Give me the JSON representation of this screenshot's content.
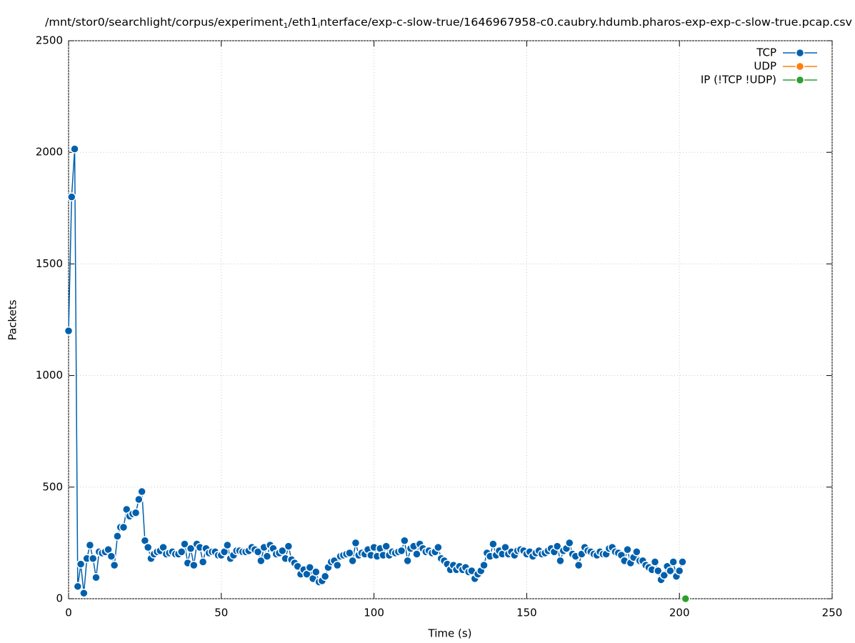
{
  "chart_data": {
    "type": "line",
    "title": [
      "/mnt/stor0/searchlight/corpus/experiment",
      "1",
      "/eth1",
      "i",
      "nterface/exp-c-slow-true/1646967958-c0.caubry.hdumb.pharos-exp-exp-c-slow-true.pcap.csv"
    ],
    "xlabel": "Time (s)",
    "ylabel": "Packets",
    "xlim": [
      0,
      250
    ],
    "xticks": [
      0,
      50,
      100,
      150,
      200,
      250
    ],
    "ylim": [
      0,
      2500
    ],
    "yticks": [
      0,
      500,
      1000,
      1500,
      2000,
      2500
    ],
    "grid": true,
    "legend": "top-right",
    "series": [
      {
        "name": "TCP",
        "color": "#0060ad",
        "x": [
          0,
          1,
          2,
          3,
          4,
          5,
          6,
          7,
          8,
          9,
          10,
          11,
          12,
          13,
          14,
          15,
          16,
          17,
          18,
          19,
          20,
          21,
          22,
          23,
          24,
          25,
          26,
          27,
          28,
          29,
          30,
          31,
          32,
          33,
          34,
          35,
          36,
          37,
          38,
          39,
          40,
          41,
          42,
          43,
          44,
          45,
          46,
          47,
          48,
          49,
          50,
          51,
          52,
          53,
          54,
          55,
          56,
          57,
          58,
          59,
          60,
          61,
          62,
          63,
          64,
          65,
          66,
          67,
          68,
          69,
          70,
          71,
          72,
          73,
          74,
          75,
          76,
          77,
          78,
          79,
          80,
          81,
          82,
          83,
          84,
          85,
          86,
          87,
          88,
          89,
          90,
          91,
          92,
          93,
          94,
          95,
          96,
          97,
          98,
          99,
          100,
          101,
          102,
          103,
          104,
          105,
          106,
          107,
          108,
          109,
          110,
          111,
          112,
          113,
          114,
          115,
          116,
          117,
          118,
          119,
          120,
          121,
          122,
          123,
          124,
          125,
          126,
          127,
          128,
          129,
          130,
          131,
          132,
          133,
          134,
          135,
          136,
          137,
          138,
          139,
          140,
          141,
          142,
          143,
          144,
          145,
          146,
          147,
          148,
          149,
          150,
          151,
          152,
          153,
          154,
          155,
          156,
          157,
          158,
          159,
          160,
          161,
          162,
          163,
          164,
          165,
          166,
          167,
          168,
          169,
          170,
          171,
          172,
          173,
          174,
          175,
          176,
          177,
          178,
          179,
          180,
          181,
          182,
          183,
          184,
          185,
          186,
          187,
          188,
          189,
          190,
          191,
          192,
          193,
          194,
          195,
          196,
          197,
          198,
          199,
          200,
          201
        ],
        "values": [
          1200,
          1800,
          2015,
          55,
          155,
          25,
          180,
          240,
          180,
          95,
          210,
          205,
          210,
          220,
          190,
          150,
          280,
          320,
          320,
          400,
          370,
          380,
          385,
          445,
          480,
          260,
          230,
          180,
          200,
          210,
          215,
          230,
          200,
          205,
          210,
          200,
          200,
          210,
          245,
          160,
          225,
          150,
          245,
          230,
          165,
          225,
          205,
          210,
          210,
          195,
          195,
          210,
          240,
          180,
          195,
          215,
          215,
          210,
          210,
          215,
          230,
          220,
          210,
          170,
          230,
          190,
          240,
          225,
          200,
          205,
          215,
          180,
          235,
          175,
          160,
          145,
          110,
          130,
          110,
          140,
          90,
          120,
          75,
          80,
          100,
          140,
          165,
          170,
          150,
          190,
          195,
          200,
          205,
          170,
          250,
          195,
          205,
          200,
          220,
          195,
          230,
          190,
          225,
          195,
          235,
          195,
          210,
          205,
          210,
          215,
          260,
          170,
          225,
          235,
          200,
          245,
          225,
          210,
          215,
          205,
          210,
          230,
          180,
          170,
          155,
          130,
          150,
          130,
          145,
          130,
          140,
          120,
          125,
          90,
          110,
          125,
          150,
          205,
          190,
          245,
          195,
          215,
          200,
          230,
          200,
          210,
          195,
          215,
          220,
          215,
          200,
          210,
          190,
          205,
          215,
          200,
          205,
          215,
          225,
          210,
          235,
          170,
          215,
          225,
          250,
          200,
          190,
          150,
          200,
          230,
          215,
          210,
          200,
          195,
          210,
          200,
          200,
          225,
          230,
          210,
          205,
          195,
          170,
          220,
          160,
          185,
          210,
          170,
          170,
          150,
          140,
          130,
          165,
          125,
          85,
          105,
          145,
          125,
          165,
          100,
          125,
          165
        ]
      },
      {
        "name": "UDP",
        "color": "#ff7f0e",
        "x": [],
        "values": []
      },
      {
        "name": "IP (!TCP  !UDP)",
        "color": "#2ca02c",
        "x": [
          202
        ],
        "values": [
          0
        ]
      }
    ]
  }
}
